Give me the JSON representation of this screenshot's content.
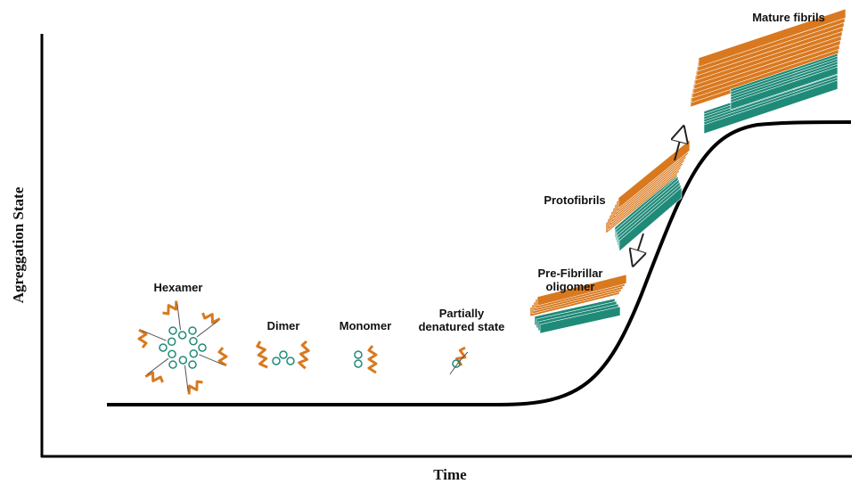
{
  "axes": {
    "y_label": "Agreggation State",
    "x_label": "Time"
  },
  "nodes": [
    {
      "lines": [
        "Hexamer"
      ]
    },
    {
      "lines": [
        "Dimer"
      ]
    },
    {
      "lines": [
        "Monomer"
      ]
    },
    {
      "lines": [
        "Partially",
        "denatured state"
      ]
    },
    {
      "lines": [
        "Pre-Fibrillar",
        "oligomer"
      ]
    },
    {
      "lines": [
        "Protofibrils"
      ]
    },
    {
      "lines": [
        "Mature fibrils"
      ]
    }
  ]
}
